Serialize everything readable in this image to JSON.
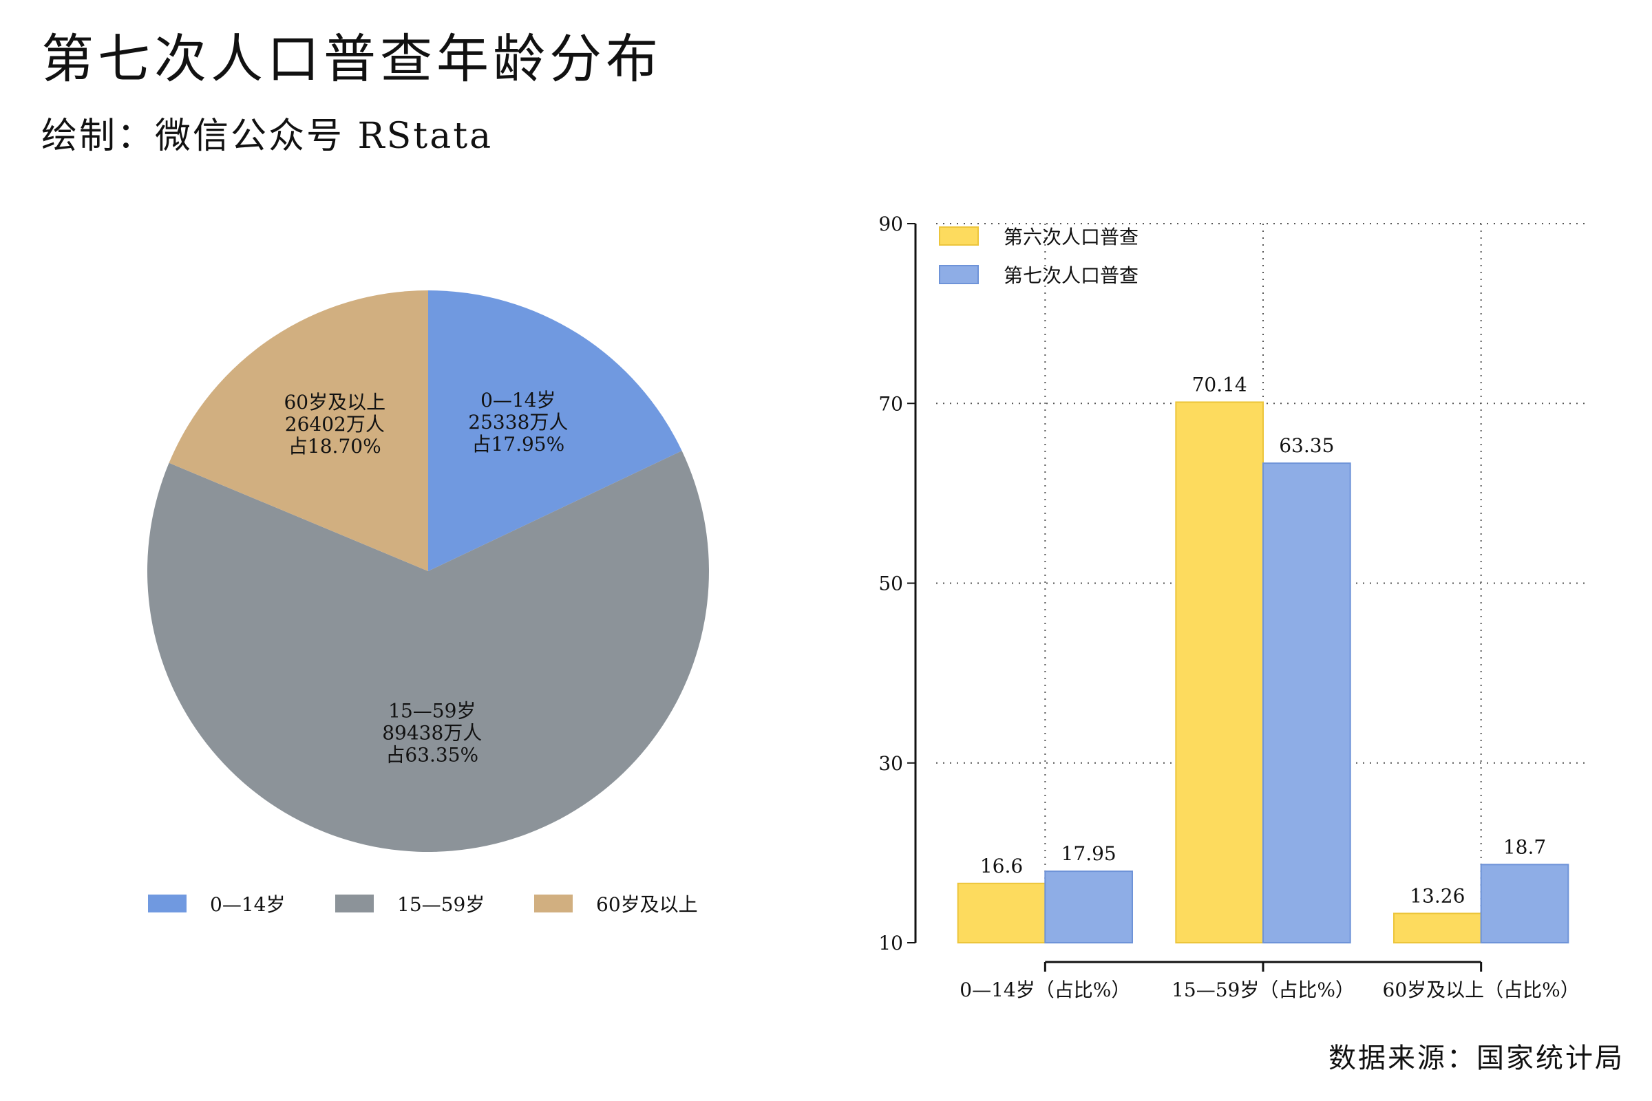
{
  "title": "第七次人口普查年龄分布",
  "subtitle": "绘制：微信公众号 RStata",
  "source": "数据来源：国家统计局",
  "chart_data": [
    {
      "type": "pie",
      "slices": [
        {
          "label": "0—14岁",
          "population": "25338万人",
          "share": "占17.95%",
          "value": 17.95,
          "color": "#7099e0"
        },
        {
          "label": "15—59岁",
          "population": "89438万人",
          "share": "占63.35%",
          "value": 63.35,
          "color": "#8c9399"
        },
        {
          "label": "60岁及以上",
          "population": "26402万人",
          "share": "占18.70%",
          "value": 18.7,
          "color": "#d1af80"
        }
      ],
      "legend": [
        "0—14岁",
        "15—59岁",
        "60岁及以上"
      ],
      "legend_position": "bottom"
    },
    {
      "type": "bar",
      "categories": [
        "0—14岁（占比%）",
        "15—59岁（占比%）",
        "60岁及以上（占比%）"
      ],
      "series": [
        {
          "name": "第六次人口普查",
          "values": [
            16.6,
            70.14,
            13.26
          ],
          "labels": [
            "16.6",
            "70.14",
            "13.26"
          ],
          "color": "#fddb5e"
        },
        {
          "name": "第七次人口普查",
          "values": [
            17.95,
            63.35,
            18.7
          ],
          "labels": [
            "17.95",
            "63.35",
            "18.7"
          ],
          "color": "#8eade6"
        }
      ],
      "yticks": [
        "10",
        "30",
        "50",
        "70",
        "90"
      ],
      "ylim": [
        10,
        90
      ],
      "grid": "dotted",
      "legend_position": "top-left"
    }
  ]
}
